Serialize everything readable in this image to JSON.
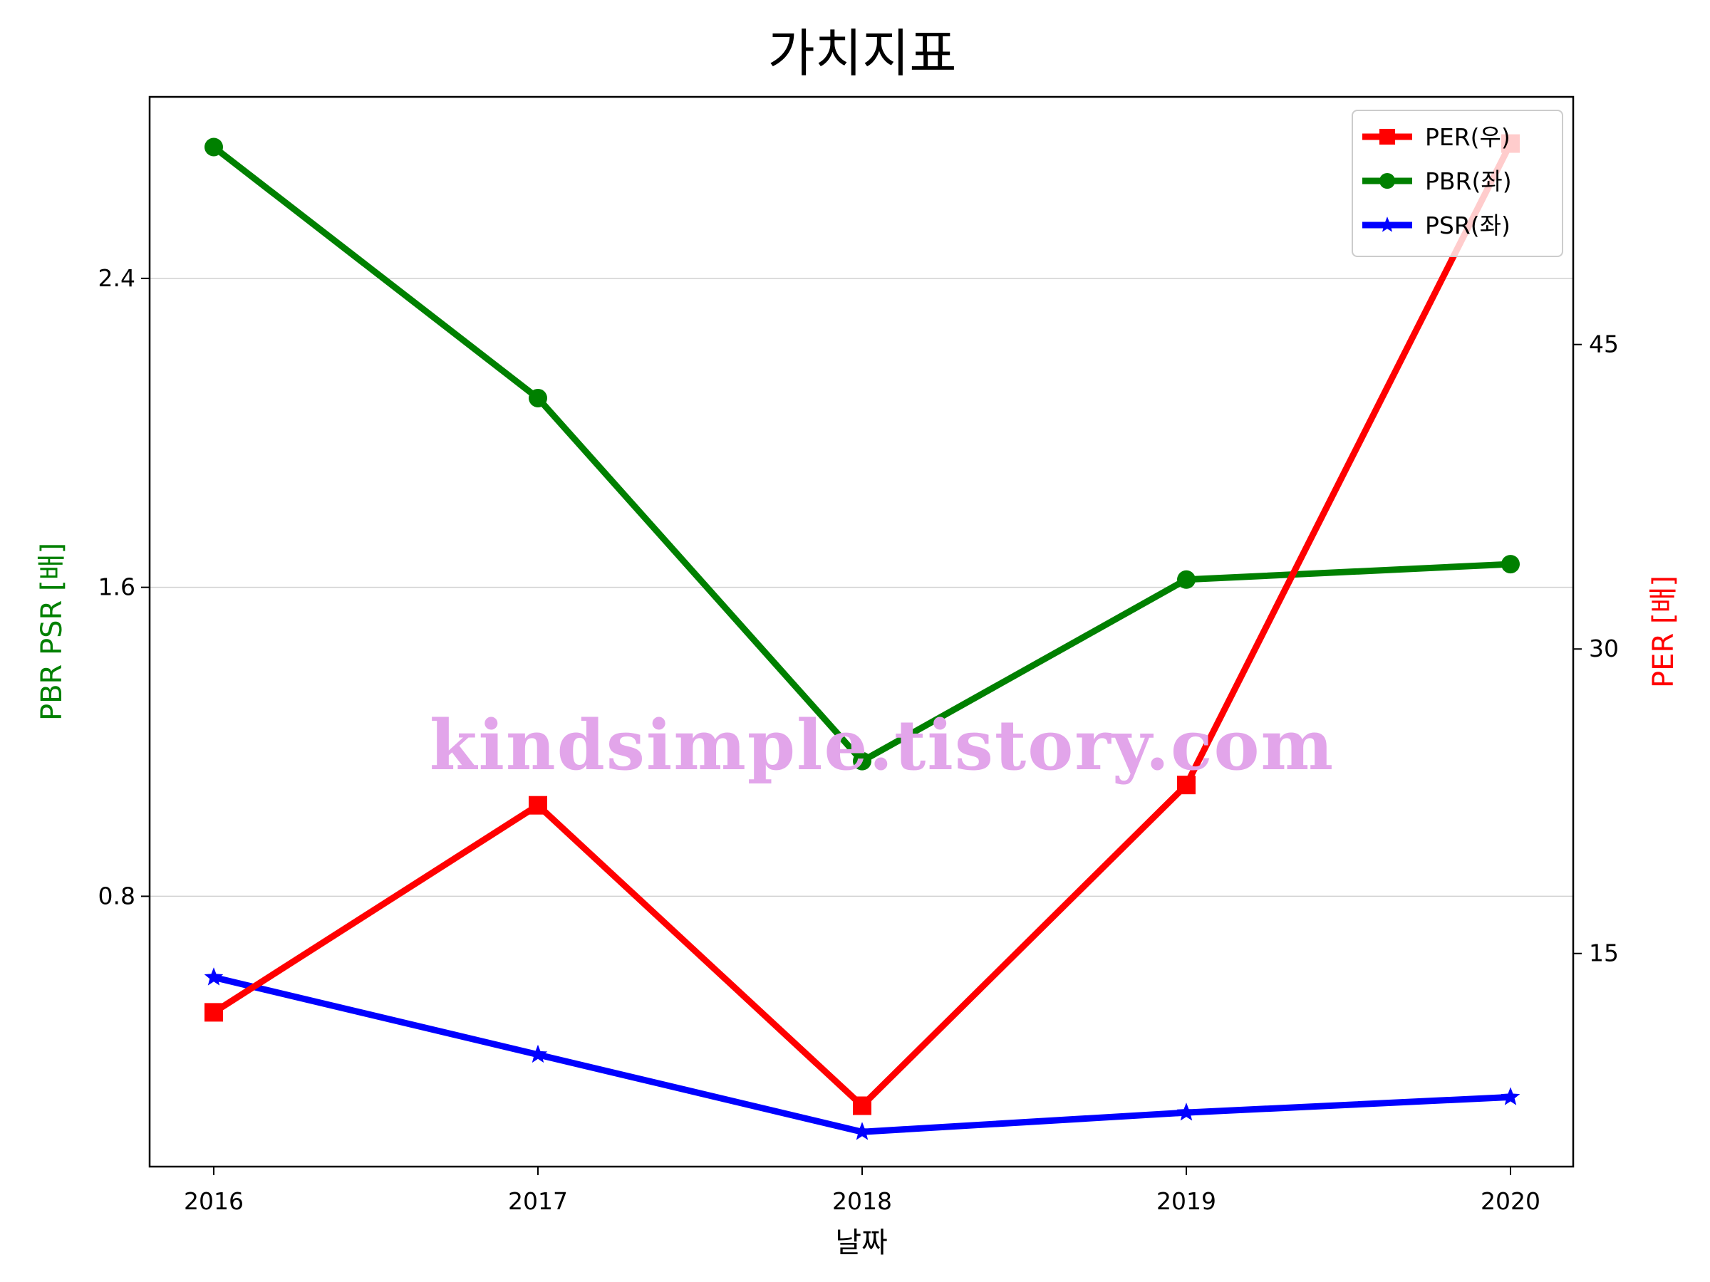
{
  "chart_data": {
    "type": "line",
    "title": "가치지표",
    "xlabel": "날짜",
    "ylabel_left": "PBR PSR [배]",
    "ylabel_right": "PER [배]",
    "categories": [
      "2016",
      "2017",
      "2018",
      "2019",
      "2020"
    ],
    "left_axis": {
      "ylim": [
        0.1,
        2.87
      ],
      "ticks": [
        "0.8",
        "1.6",
        "2.4"
      ],
      "color": "#008000"
    },
    "right_axis": {
      "ylim": [
        4.5,
        57.2
      ],
      "ticks": [
        "15",
        "30",
        "45"
      ],
      "color": "#ff0000"
    },
    "grid": "horizontal",
    "legend_position": "top-right",
    "series": [
      {
        "name": "PER(우)",
        "axis": "right",
        "marker": "square",
        "color": "#ff0000",
        "values": [
          12.1,
          22.3,
          7.5,
          23.3,
          54.9
        ]
      },
      {
        "name": "PBR(좌)",
        "axis": "left",
        "marker": "circle",
        "color": "#008000",
        "values": [
          2.74,
          2.09,
          1.15,
          1.62,
          1.66
        ]
      },
      {
        "name": "PSR(좌)",
        "axis": "left",
        "marker": "star",
        "color": "#0000ff",
        "values": [
          0.59,
          0.39,
          0.19,
          0.24,
          0.28
        ]
      }
    ]
  },
  "watermark": "kindsimple.tistory.com"
}
